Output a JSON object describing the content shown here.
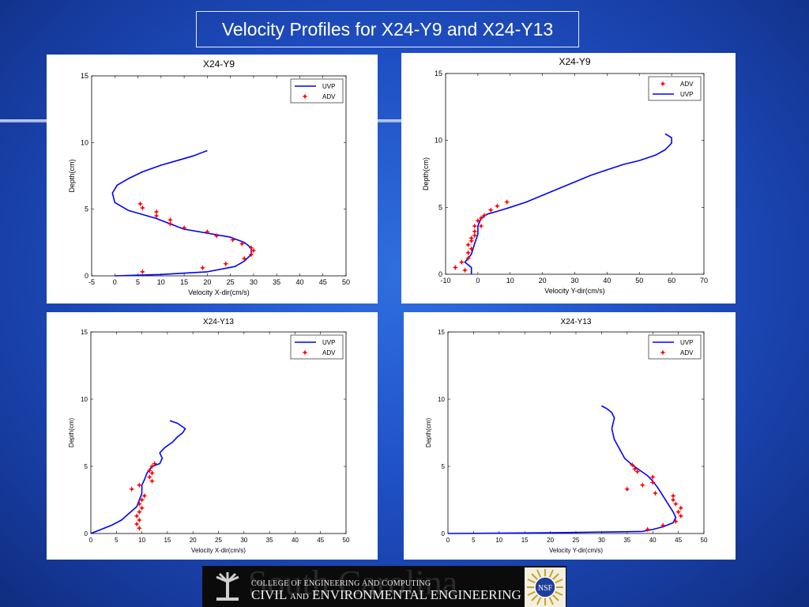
{
  "slide_title": "Velocity Profiles for X24-Y9 and X24-Y13",
  "footer": {
    "college": "COLLEGE OF ENGINEERING AND COMPUTING",
    "dept_civil": "CIVIL",
    "dept_and": "AND",
    "dept_env": "ENVIRONMENTAL ENGINEERING",
    "background_word": "South Carolina",
    "nsf_logo": "NSF"
  },
  "chart_data": [
    {
      "type": "line",
      "title": "X24-Y9",
      "xlabel": "Velocity X-dir(cm/s)",
      "ylabel": "Depth(cm)",
      "xlim": [
        -5,
        50
      ],
      "ylim": [
        0,
        15
      ],
      "xticks": [
        -5,
        0,
        5,
        10,
        15,
        20,
        25,
        30,
        35,
        40,
        45,
        50
      ],
      "yticks": [
        0,
        5,
        10,
        15
      ],
      "legend_position": "top-right",
      "legend_order": [
        "UVP",
        "ADV"
      ],
      "series": [
        {
          "name": "UVP",
          "kind": "line",
          "color": "#0000ff",
          "x": [
            0,
            10,
            20,
            26,
            28,
            29.5,
            29.5,
            28,
            25,
            20,
            15,
            12,
            9,
            6,
            3,
            0,
            -0.5,
            0.5,
            3,
            6,
            10,
            14,
            17,
            20
          ],
          "y": [
            0,
            0.1,
            0.3,
            0.7,
            1.1,
            1.6,
            2.1,
            2.5,
            2.9,
            3.2,
            3.5,
            3.9,
            4.3,
            4.6,
            4.9,
            5.5,
            6.2,
            6.8,
            7.3,
            7.8,
            8.3,
            8.7,
            9.0,
            9.4
          ]
        },
        {
          "name": "ADV",
          "kind": "marker",
          "color": "#ff0000",
          "x": [
            6,
            19,
            24,
            28,
            29.5,
            30,
            29.5,
            27.5,
            25.5,
            22,
            20,
            15,
            12,
            12,
            9,
            9,
            6,
            5.5
          ],
          "y": [
            0.3,
            0.6,
            0.9,
            1.3,
            1.6,
            1.9,
            2.1,
            2.4,
            2.7,
            3.0,
            3.3,
            3.6,
            3.9,
            4.2,
            4.5,
            4.8,
            5.1,
            5.4
          ]
        }
      ]
    },
    {
      "type": "line",
      "title": "X24-Y9",
      "xlabel": "Velocity Y-dir(cm/s)",
      "ylabel": "Depth(cm)",
      "xlim": [
        -10,
        70
      ],
      "ylim": [
        0,
        15
      ],
      "xticks": [
        -10,
        0,
        10,
        20,
        30,
        40,
        50,
        60,
        70
      ],
      "yticks": [
        0,
        5,
        10,
        15
      ],
      "legend_position": "top-right",
      "legend_order": [
        "ADV",
        "UVP"
      ],
      "series": [
        {
          "name": "UVP",
          "kind": "line",
          "color": "#0000ff",
          "x": [
            -2,
            -2,
            -4,
            -2,
            -1,
            0,
            0,
            1,
            3,
            6,
            10,
            15,
            20,
            25,
            30,
            35,
            40,
            45,
            50,
            55,
            58,
            60,
            60,
            58
          ],
          "y": [
            0,
            0.5,
            0.9,
            1.5,
            2.3,
            3.0,
            3.6,
            4.2,
            4.5,
            4.7,
            5.0,
            5.4,
            5.9,
            6.4,
            6.9,
            7.4,
            7.8,
            8.2,
            8.5,
            8.9,
            9.3,
            9.8,
            10.2,
            10.5
          ]
        },
        {
          "name": "ADV",
          "kind": "marker",
          "color": "#ff0000",
          "x": [
            -7,
            -4,
            -5,
            -3,
            -3,
            -2,
            -3,
            -2,
            -1,
            -1,
            -2,
            -1,
            1,
            0,
            1,
            2,
            4,
            6,
            9
          ],
          "y": [
            0.5,
            0.3,
            0.9,
            1.2,
            1.6,
            1.9,
            2.2,
            2.5,
            2.9,
            3.2,
            2.7,
            3.6,
            3.6,
            4.0,
            4.2,
            4.4,
            4.8,
            5.1,
            5.4
          ]
        }
      ]
    },
    {
      "type": "line",
      "title": "X24-Y13",
      "xlabel": "Velocity X-dir(cm/s)",
      "ylabel": "Depth(cm)",
      "xlim": [
        0,
        50
      ],
      "ylim": [
        0,
        15
      ],
      "xticks": [
        0,
        5,
        10,
        15,
        20,
        25,
        30,
        35,
        40,
        45,
        50
      ],
      "yticks": [
        0,
        5,
        10,
        15
      ],
      "legend_position": "top-right",
      "legend_order": [
        "UVP",
        "ADV"
      ],
      "series": [
        {
          "name": "UVP",
          "kind": "line",
          "color": "#0000ff",
          "x": [
            0,
            2,
            4,
            6,
            7.5,
            9,
            9.5,
            10,
            10,
            10.5,
            11,
            12,
            13.5,
            14,
            13.5,
            14.5,
            16,
            17,
            18,
            18.5,
            17,
            15.5
          ],
          "y": [
            0,
            0.3,
            0.6,
            1.0,
            1.5,
            2.0,
            2.5,
            3.0,
            3.6,
            4.0,
            4.5,
            5.0,
            5.2,
            5.6,
            6.0,
            6.4,
            6.8,
            7.2,
            7.5,
            7.8,
            8.2,
            8.4
          ]
        },
        {
          "name": "ADV",
          "kind": "marker",
          "color": "#ff0000",
          "x": [
            9.5,
            9,
            9.5,
            9,
            9.5,
            10,
            9.5,
            10,
            10.5,
            8,
            9.5,
            12,
            11.5,
            12,
            11.5,
            12,
            12.5
          ],
          "y": [
            0.4,
            0.7,
            1.0,
            1.3,
            1.6,
            1.9,
            2.2,
            2.5,
            2.8,
            3.3,
            3.6,
            3.9,
            4.2,
            4.5,
            4.7,
            5.0,
            5.2
          ]
        }
      ]
    },
    {
      "type": "line",
      "title": "X24-Y13",
      "xlabel": "Velocity Y-dir(cm/s)",
      "ylabel": "Depth(cm)",
      "xlim": [
        0,
        50
      ],
      "ylim": [
        0,
        15
      ],
      "xticks": [
        0,
        5,
        10,
        15,
        20,
        25,
        30,
        35,
        40,
        45,
        50
      ],
      "yticks": [
        0,
        5,
        10,
        15
      ],
      "legend_position": "top-right",
      "legend_order": [
        "UVP",
        "ADV"
      ],
      "series": [
        {
          "name": "UVP",
          "kind": "line",
          "color": "#0000ff",
          "x": [
            0,
            20,
            38,
            40,
            42,
            44,
            44.5,
            44,
            43,
            42,
            41,
            40,
            39,
            37.5,
            36,
            34.5,
            33.5,
            32.5,
            32,
            32.5,
            32,
            31,
            30
          ],
          "y": [
            0,
            0.05,
            0.15,
            0.3,
            0.5,
            0.8,
            1.2,
            1.6,
            2.2,
            2.8,
            3.4,
            3.9,
            4.3,
            4.7,
            5.1,
            5.6,
            6.3,
            7.0,
            7.8,
            8.6,
            9.0,
            9.3,
            9.5
          ]
        },
        {
          "name": "ADV",
          "kind": "marker",
          "color": "#ff0000",
          "x": [
            39,
            42,
            44.5,
            45.5,
            45,
            45.5,
            44.5,
            44,
            44,
            35,
            40.5,
            40,
            38,
            40,
            37,
            36.5,
            36
          ],
          "y": [
            0.3,
            0.6,
            0.9,
            1.3,
            1.6,
            1.9,
            2.2,
            2.5,
            2.8,
            3.3,
            3.0,
            3.8,
            3.6,
            4.2,
            4.6,
            4.8,
            5.1
          ]
        }
      ]
    }
  ]
}
